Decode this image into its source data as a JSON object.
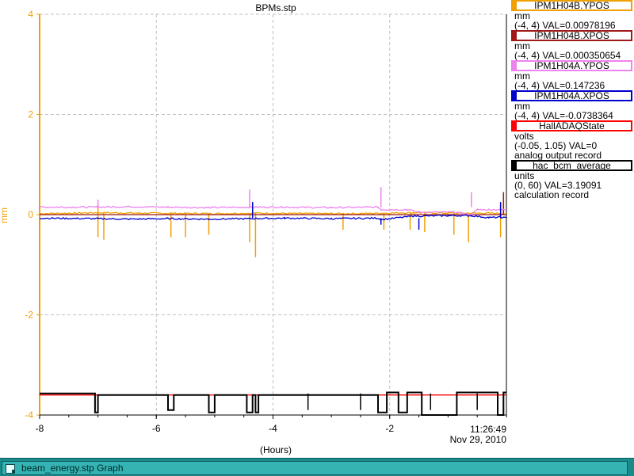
{
  "colors": {
    "axis_orange": "#f0a000",
    "grid": "#c0c0c0",
    "taskbar": "#1a8a8a"
  },
  "chart_data": {
    "type": "line",
    "title": "BPMs.stp",
    "xlabel": "(Hours)",
    "ylabel": "mm",
    "xlim": [
      -8,
      0
    ],
    "ylim": [
      -4,
      4
    ],
    "x_ticks": [
      "-8",
      "-6",
      "-4",
      "-2"
    ],
    "y_ticks": [
      "4",
      "2",
      "0",
      "-2",
      "-4"
    ],
    "grid": true,
    "legend_position": "right",
    "time_label": "11:26:49",
    "date_label": "Nov 29, 2010",
    "series": [
      {
        "name": "IPM1H04B.YPOS",
        "color": "#f0a000",
        "base": 0.03,
        "points": [
          [
            -8,
            0.02
          ],
          [
            -7.4,
            0.03
          ],
          [
            -7.0,
            0.04
          ],
          [
            -6.3,
            0.03
          ],
          [
            -5.0,
            0.02
          ],
          [
            -4.3,
            0.03
          ],
          [
            -3.5,
            0.02
          ],
          [
            -2.5,
            0.02
          ],
          [
            -2.1,
            0.03
          ],
          [
            -1.6,
            0.04
          ],
          [
            -0.9,
            0.03
          ],
          [
            -0.3,
            0.03
          ],
          [
            0,
            0.02
          ]
        ],
        "spikes": [
          [
            -7.0,
            -0.45
          ],
          [
            -6.9,
            -0.5
          ],
          [
            -5.75,
            -0.45
          ],
          [
            -5.5,
            -0.45
          ],
          [
            -5.1,
            -0.4
          ],
          [
            -4.4,
            -0.55
          ],
          [
            -4.3,
            -0.85
          ],
          [
            -2.8,
            -0.3
          ],
          [
            -2.1,
            -0.3
          ],
          [
            -1.65,
            -0.3
          ],
          [
            -1.4,
            -0.35
          ],
          [
            -0.9,
            -0.4
          ],
          [
            -0.65,
            -0.55
          ],
          [
            -0.1,
            -0.45
          ],
          [
            -7.0,
            0.2
          ],
          [
            -4.35,
            0.25
          ],
          [
            -0.05,
            0.3
          ]
        ]
      },
      {
        "name": "IPM1H04B.XPOS",
        "color": "#a01818",
        "base": 0.0,
        "points": [
          [
            -8,
            0.0
          ],
          [
            0,
            0.0
          ]
        ],
        "spikes": [
          [
            -0.05,
            0.45
          ]
        ]
      },
      {
        "name": "IPM1H04A.YPOS",
        "color": "#ee82ee",
        "base": 0.15,
        "points": [
          [
            -8,
            0.15
          ],
          [
            -7.0,
            0.15
          ],
          [
            -6.5,
            0.16
          ],
          [
            -5.8,
            0.15
          ],
          [
            -5.1,
            0.14
          ],
          [
            -4.4,
            0.15
          ],
          [
            -3.8,
            0.15
          ],
          [
            -3.0,
            0.14
          ],
          [
            -2.2,
            0.15
          ],
          [
            -2.15,
            0.1
          ],
          [
            -2.0,
            0.1
          ],
          [
            -1.7,
            0.1
          ],
          [
            -1.5,
            0.05
          ],
          [
            -0.9,
            0.05
          ],
          [
            -0.75,
            0.02
          ],
          [
            -0.6,
            0.0
          ],
          [
            -0.5,
            0.1
          ],
          [
            -0.3,
            0.1
          ],
          [
            -0.1,
            0.1
          ],
          [
            0,
            0.1
          ]
        ],
        "spikes": [
          [
            -7.0,
            0.3
          ],
          [
            -4.4,
            0.5
          ],
          [
            -2.15,
            0.55
          ],
          [
            -0.6,
            0.45
          ],
          [
            -0.1,
            0.2
          ]
        ]
      },
      {
        "name": "IPM1H04A.XPOS",
        "color": "#0000cc",
        "base": -0.07,
        "points": [
          [
            -8,
            -0.07
          ],
          [
            -7.0,
            -0.08
          ],
          [
            -6.5,
            -0.09
          ],
          [
            -5.8,
            -0.08
          ],
          [
            -5.1,
            -0.09
          ],
          [
            -4.4,
            -0.08
          ],
          [
            -3.8,
            -0.07
          ],
          [
            -3.0,
            -0.08
          ],
          [
            -2.2,
            -0.07
          ],
          [
            -2.15,
            -0.1
          ],
          [
            -1.6,
            -0.03
          ],
          [
            -1.0,
            -0.02
          ],
          [
            -0.6,
            -0.02
          ],
          [
            -0.3,
            -0.06
          ],
          [
            -0.1,
            -0.05
          ],
          [
            0,
            -0.07
          ]
        ],
        "spikes": [
          [
            -4.35,
            0.25
          ],
          [
            -2.15,
            -0.2
          ],
          [
            -1.5,
            -0.3
          ],
          [
            -0.1,
            0.25
          ]
        ]
      },
      {
        "name": "HallADAQState",
        "color": "#ff0000",
        "base": -3.6,
        "points": [
          [
            -8,
            -3.6
          ],
          [
            0,
            -3.6
          ]
        ],
        "spikes": []
      },
      {
        "name": "hac_bcm_average",
        "color": "#000000",
        "base": -3.57,
        "points": [
          [
            -8,
            -3.57
          ],
          [
            -7.05,
            -3.57
          ],
          [
            -7.05,
            -3.95
          ],
          [
            -7.0,
            -3.95
          ],
          [
            -7.0,
            -3.6
          ],
          [
            -5.8,
            -3.6
          ],
          [
            -5.8,
            -3.9
          ],
          [
            -5.7,
            -3.9
          ],
          [
            -5.7,
            -3.6
          ],
          [
            -5.1,
            -3.6
          ],
          [
            -5.1,
            -3.95
          ],
          [
            -5.0,
            -3.95
          ],
          [
            -5.0,
            -3.6
          ],
          [
            -4.45,
            -3.6
          ],
          [
            -4.45,
            -3.95
          ],
          [
            -4.35,
            -3.95
          ],
          [
            -4.35,
            -3.6
          ],
          [
            -4.3,
            -3.6
          ],
          [
            -4.3,
            -3.95
          ],
          [
            -4.25,
            -3.95
          ],
          [
            -4.25,
            -3.6
          ],
          [
            -2.2,
            -3.6
          ],
          [
            -2.2,
            -3.95
          ],
          [
            -2.05,
            -3.95
          ],
          [
            -2.05,
            -3.55
          ],
          [
            -1.85,
            -3.55
          ],
          [
            -1.85,
            -3.95
          ],
          [
            -1.7,
            -3.95
          ],
          [
            -1.7,
            -3.55
          ],
          [
            -1.45,
            -3.55
          ],
          [
            -1.45,
            -4.0
          ],
          [
            -0.85,
            -4.0
          ],
          [
            -0.85,
            -3.55
          ],
          [
            -0.15,
            -3.55
          ],
          [
            -0.15,
            -4.0
          ],
          [
            -0.05,
            -4.0
          ],
          [
            -0.05,
            -3.55
          ],
          [
            0,
            -3.55
          ]
        ],
        "spikes": [
          [
            -3.4,
            -3.9
          ],
          [
            -2.5,
            -3.9
          ],
          [
            -1.3,
            -3.9
          ],
          [
            -0.5,
            -3.9
          ]
        ]
      }
    ]
  },
  "legend": [
    {
      "name": "IPM1H04B.YPOS",
      "color": "#f0a000",
      "unit": "mm",
      "range": "(-4, 4) VAL=0.00978196",
      "extra": ""
    },
    {
      "name": "IPM1H04B.XPOS",
      "color": "#a01818",
      "unit": "mm",
      "range": "(-4, 4) VAL=0.000350654",
      "extra": ""
    },
    {
      "name": "IPM1H04A.YPOS",
      "color": "#ee82ee",
      "unit": "mm",
      "range": "(-4, 4) VAL=0.147236",
      "extra": ""
    },
    {
      "name": "IPM1H04A.XPOS",
      "color": "#0000cc",
      "unit": "mm",
      "range": "(-4, 4) VAL=-0.0738364",
      "extra": ""
    },
    {
      "name": "HallADAQState",
      "color": "#ff0000",
      "unit": "volts",
      "range": "(-0.05, 1.05) VAL=0",
      "extra": "analog output record"
    },
    {
      "name": "hac_bcm_average",
      "color": "#000000",
      "unit": "units",
      "range": "(0, 60) VAL=3.19091",
      "extra": "calculation record"
    }
  ],
  "taskbar": {
    "label": "beam_energy.stp Graph",
    "icon": "window-icon"
  }
}
